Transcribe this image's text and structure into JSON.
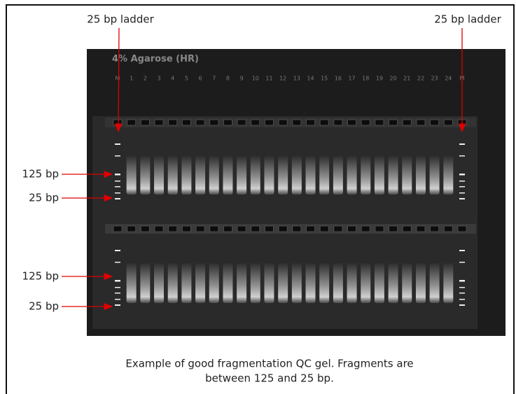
{
  "annotations": {
    "top_left": "25 bp ladder",
    "top_right": "25 bp ladder",
    "markers": [
      "125 bp",
      "25 bp",
      "125 bp",
      "25 bp"
    ]
  },
  "gel": {
    "title": "4% Agarose (HR)",
    "lanes": [
      "M",
      "1",
      "2",
      "3",
      "4",
      "5",
      "6",
      "7",
      "8",
      "9",
      "10",
      "11",
      "12",
      "13",
      "14",
      "15",
      "16",
      "17",
      "18",
      "19",
      "20",
      "21",
      "22",
      "23",
      "24",
      "M"
    ]
  },
  "caption": {
    "lines": [
      "Example of good fragmentation QC gel. Fragments are",
      "between 125 and 25 bp."
    ]
  }
}
